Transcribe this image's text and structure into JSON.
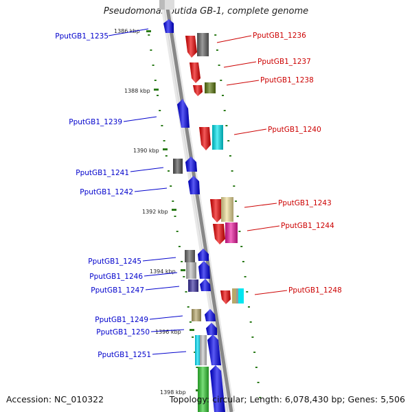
{
  "title": "Pseudomonas putida GB-1, complete genome",
  "accession": "Accession: NC_010322",
  "topology": "Topology: circular; Length: 6,078,430 bp; Genes: 5,506",
  "colors": {
    "forward_label": "#0000cc",
    "reverse_label": "#cc0000",
    "backbone": "#888888",
    "tick": "#2a7a18"
  },
  "scale_labels": [
    "1386 kbp",
    "1388 kbp",
    "1390 kbp",
    "1392 kbp",
    "1394 kbp",
    "1396 kbp",
    "1398 kbp"
  ],
  "left_genes": [
    {
      "label": "PputGB1_1235"
    },
    {
      "label": "PputGB1_1239"
    },
    {
      "label": "PputGB1_1241"
    },
    {
      "label": "PputGB1_1242"
    },
    {
      "label": "PputGB1_1245"
    },
    {
      "label": "PputGB1_1246"
    },
    {
      "label": "PputGB1_1247"
    },
    {
      "label": "PputGB1_1249"
    },
    {
      "label": "PputGB1_1250"
    },
    {
      "label": "PputGB1_1251"
    }
  ],
  "right_genes": [
    {
      "label": "PputGB1_1236"
    },
    {
      "label": "PputGB1_1237"
    },
    {
      "label": "PputGB1_1238"
    },
    {
      "label": "PputGB1_1240"
    },
    {
      "label": "PputGB1_1243"
    },
    {
      "label": "PputGB1_1244"
    },
    {
      "label": "PputGB1_1248"
    }
  ]
}
